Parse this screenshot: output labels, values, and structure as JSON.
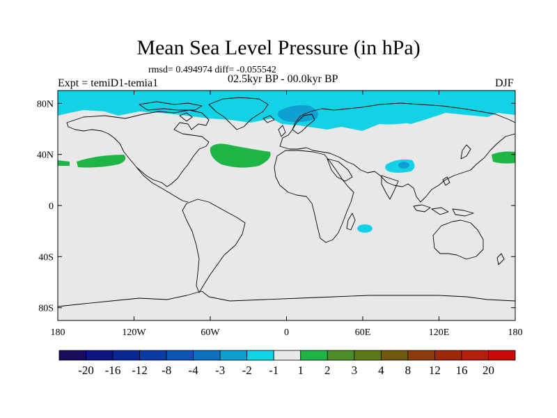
{
  "header": {
    "title": "Mean Sea Level Pressure (in hPa)",
    "stats": "rmsd= 0.494974 diff= -0.055542",
    "experiment": "Expt = temiD1-temia1",
    "period": "02.5kyr BP - 00.0kyr BP",
    "season": "DJF"
  },
  "axes": {
    "lat_labels": [
      "80N",
      "40N",
      "0",
      "40S",
      "80S"
    ],
    "lat_values": [
      80,
      40,
      0,
      -40,
      -80
    ],
    "lon_labels": [
      "180",
      "120W",
      "60W",
      "0",
      "60E",
      "120E",
      "180"
    ],
    "lon_values": [
      -180,
      -120,
      -60,
      0,
      60,
      120,
      180
    ]
  },
  "colorbar": {
    "labels": [
      "-20",
      "-16",
      "-12",
      "-8",
      "-4",
      "-3",
      "-2",
      "-1",
      "1",
      "2",
      "3",
      "4",
      "8",
      "12",
      "16",
      "20"
    ],
    "colors": [
      "#1a0a5e",
      "#0d1680",
      "#0a2796",
      "#0a3ca8",
      "#0a55b4",
      "#0a72c0",
      "#0fa0d2",
      "#14d2e6",
      "#e8e8e8",
      "#1eb446",
      "#4e8c28",
      "#5a7814",
      "#6e5a0a",
      "#8c3c0a",
      "#a0280a",
      "#b41e0a",
      "#c80a0a"
    ]
  },
  "colors": {
    "ocean_land": "#e8e8e8",
    "neg1": "#14d2e6",
    "neg2": "#0fa0d2",
    "pos1": "#1eb446"
  }
}
